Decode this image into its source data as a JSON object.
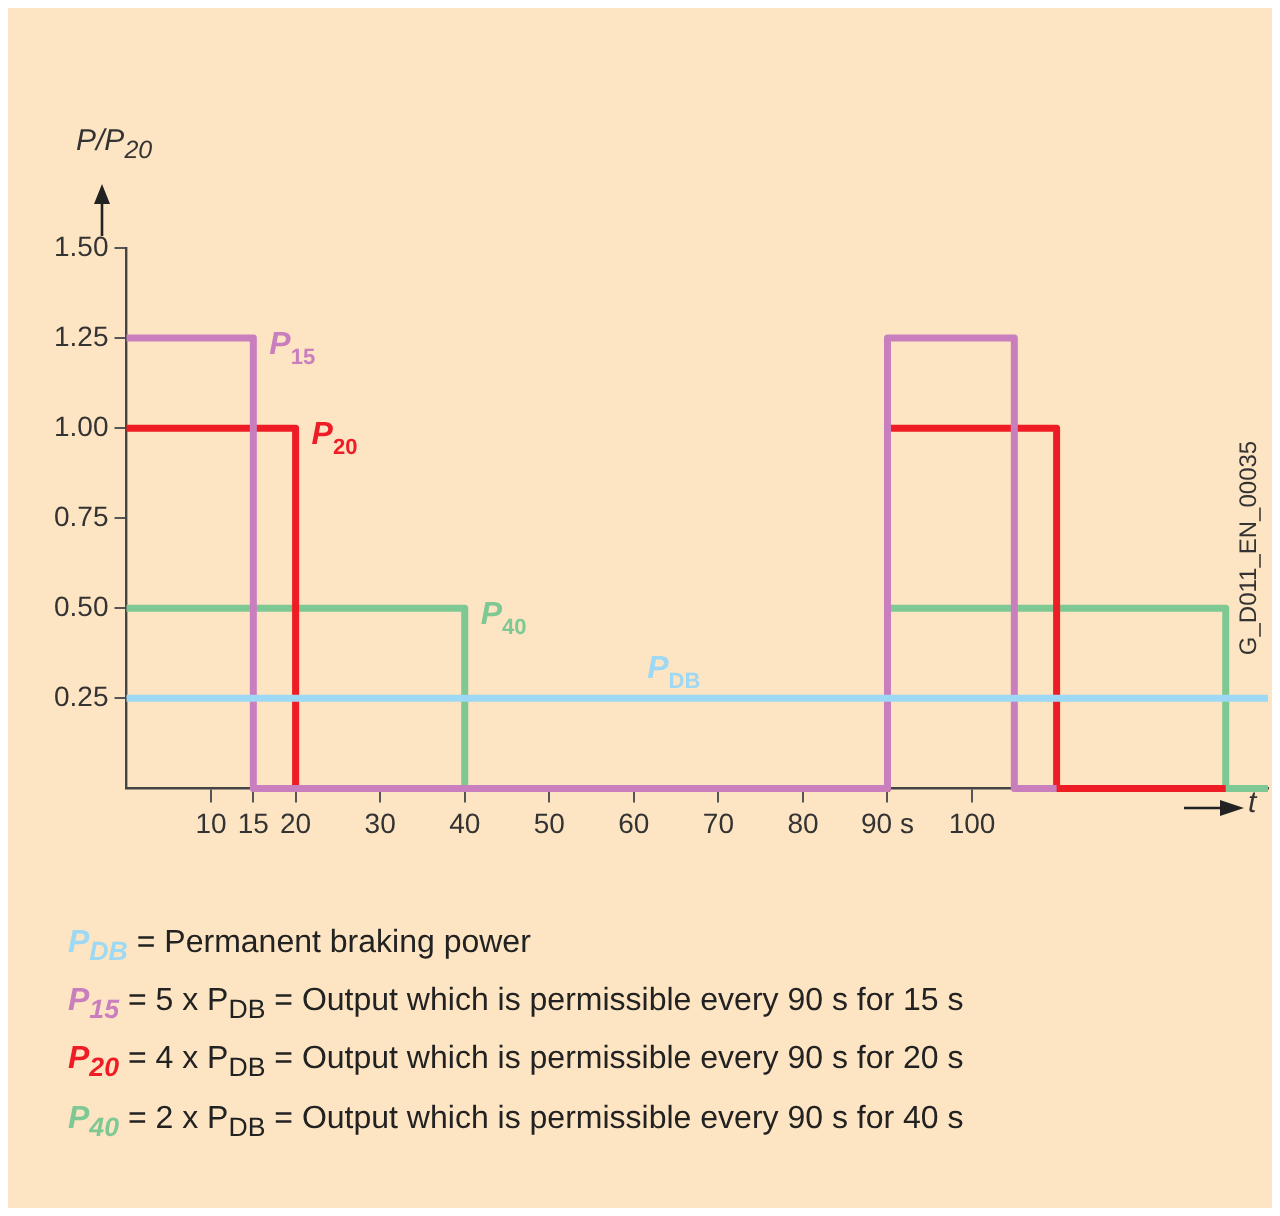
{
  "chart_data": {
    "type": "step",
    "ylabel": "P/P$_{20}$",
    "xlabel": "t",
    "xlim": [
      0,
      135
    ],
    "xticks": [
      10,
      15,
      20,
      30,
      40,
      50,
      60,
      70,
      80,
      {
        "value": 90,
        "label": "90 s"
      },
      100
    ],
    "ylim": [
      0,
      1.5
    ],
    "yticks": [
      {
        "value": 0.25,
        "label": "0.25"
      },
      {
        "value": 0.5,
        "label": "0.50"
      },
      {
        "value": 0.75,
        "label": "0.75"
      },
      {
        "value": 1.0,
        "label": "1.00"
      },
      {
        "value": 1.25,
        "label": "1.25"
      },
      {
        "value": 1.5,
        "label": "1.50"
      }
    ],
    "grid": false,
    "legend": false,
    "marker": "none",
    "line_style": "solid",
    "series": [
      {
        "name": "P$_{DB}$",
        "color": "#9dd8f5",
        "x": [
          0,
          135
        ],
        "values": [
          0.25,
          0.25
        ]
      },
      {
        "name": "P$_{15}$",
        "color": "#c97fbe",
        "x": [
          0,
          15,
          90,
          105,
          110
        ],
        "values": [
          1.25,
          0,
          1.25,
          0,
          0
        ]
      },
      {
        "name": "P$_{20}$",
        "color": "#ee1c25",
        "x": [
          0,
          20,
          90,
          110,
          130
        ],
        "values": [
          1.0,
          0,
          1.0,
          0,
          0
        ]
      },
      {
        "name": "P$_{40}$",
        "color": "#7ec894",
        "x": [
          0,
          40,
          90,
          130,
          135
        ],
        "values": [
          0.5,
          0,
          0.5,
          0,
          0
        ]
      }
    ],
    "annotations": [
      "P$_{DB}$ = Permanent braking power",
      "P$_{15}$ = 5 x P$_{DB}$ = Output which is permissible every 90 s for 15 s",
      "P$_{20}$ = 4 x P$_{DB}$ = Output which is permissible every 90 s for 20 s",
      "P$_{40}$ = 2 x P$_{DB}$ = Output which is permissible every 90 s for 40 s",
      "G_D011_EN_00035"
    ]
  }
}
